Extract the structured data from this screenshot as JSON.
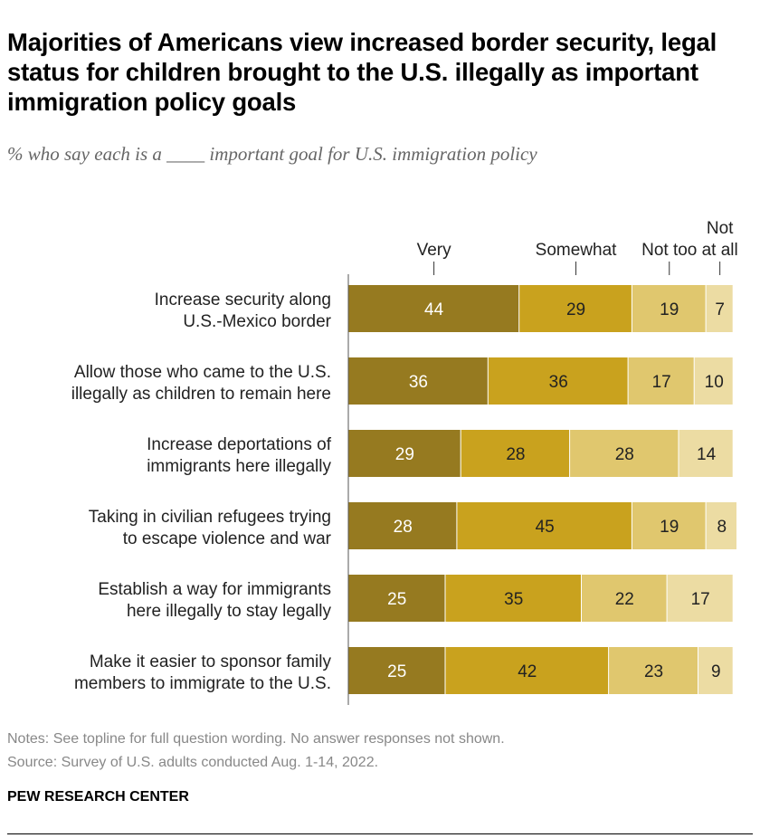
{
  "title": "Majorities of Americans view increased border security, legal status for children brought to the U.S. illegally as important immigration policy goals",
  "subtitle": "% who say each is a ____ important goal for U.S. immigration policy",
  "notes": "Notes: See topline for full question wording. No answer responses not shown.",
  "source": "Source: Survey of U.S. adults conducted Aug. 1-14, 2022.",
  "brand": "PEW RESEARCH CENTER",
  "chart_data": {
    "type": "bar",
    "orientation": "horizontal",
    "stacked": true,
    "categories": [
      "Increase security along\nU.S.-Mexico border",
      "Allow those who came to the U.S.\nillegally as children to remain here",
      "Increase deportations of\nimmigrants here illegally",
      "Taking in civilian refugees trying\nto escape violence and war",
      "Establish a way for immigrants\nhere illegally to stay legally",
      "Make it easier to sponsor family\nmembers to immigrate to the U.S."
    ],
    "series": [
      {
        "name": "Very",
        "color": "#967a20",
        "label_color": "#ffffff",
        "values": [
          44,
          36,
          29,
          28,
          25,
          25
        ]
      },
      {
        "name": "Somewhat",
        "color": "#c9a21e",
        "label_color": "#222222",
        "values": [
          29,
          36,
          28,
          45,
          35,
          42
        ]
      },
      {
        "name": "Not too",
        "color": "#e0c76e",
        "label_color": "#222222",
        "values": [
          19,
          17,
          28,
          19,
          22,
          23
        ]
      },
      {
        "name": "Not\nat all",
        "color": "#ecdca3",
        "label_color": "#222222",
        "values": [
          7,
          10,
          14,
          8,
          17,
          9
        ]
      }
    ],
    "xlim": [
      0,
      100
    ],
    "grid": false,
    "legend": "top, labels above first bar"
  }
}
